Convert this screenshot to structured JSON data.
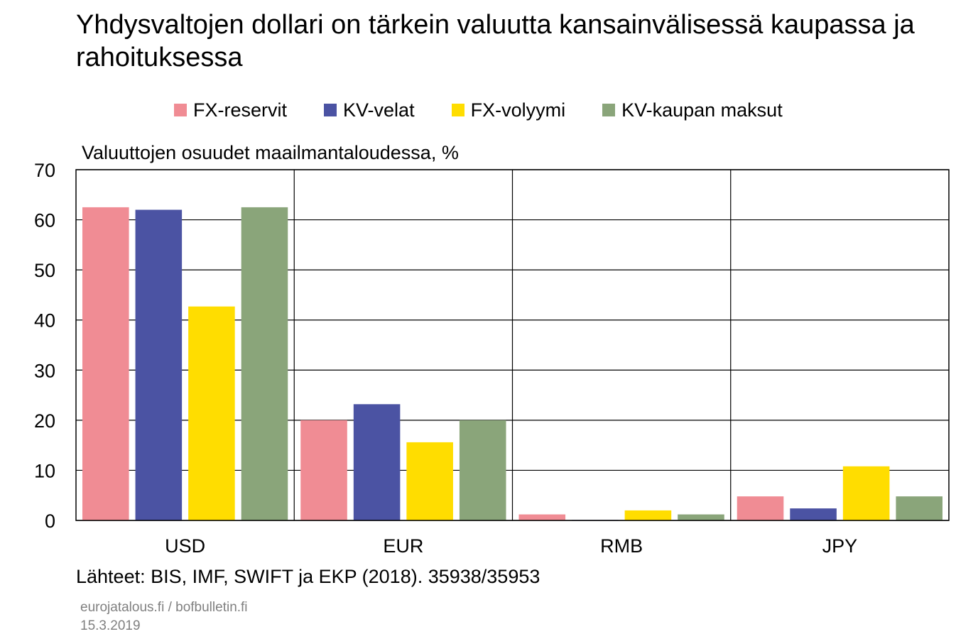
{
  "title": "Yhdysvaltojen dollari on tärkein valuutta kansainvälisessä kaupassa ja rahoituksessa",
  "source": "Lähteet: BIS, IMF, SWIFT ja EKP (2018). 35938/35953",
  "footer": {
    "site": "eurojatalous.fi / bofbulletin.fi",
    "date": "15.3.2019"
  },
  "colors": {
    "FX-reservit": "#f08c94",
    "KV-velat": "#4b53a3",
    "FX-volyymi": "#ffdd00",
    "KV-kaupan maksut": "#8aa57a"
  },
  "chart_data": {
    "type": "bar",
    "ylabel": "Valuuttojen osuudet maailmantaloudessa, %",
    "ylim": [
      0,
      70
    ],
    "yticks": [
      0,
      10,
      20,
      30,
      40,
      50,
      60,
      70
    ],
    "grid": true,
    "legend_position": "top",
    "categories": [
      "USD",
      "EUR",
      "RMB",
      "JPY"
    ],
    "series": [
      {
        "name": "FX-reservit",
        "values": [
          62.5,
          20.0,
          1.2,
          4.8
        ]
      },
      {
        "name": "KV-velat",
        "values": [
          62.0,
          23.2,
          0.1,
          2.4
        ]
      },
      {
        "name": "FX-volyymi",
        "values": [
          42.7,
          15.6,
          2.0,
          10.8
        ]
      },
      {
        "name": "KV-kaupan maksut",
        "values": [
          62.5,
          20.0,
          1.2,
          4.8
        ]
      }
    ]
  }
}
